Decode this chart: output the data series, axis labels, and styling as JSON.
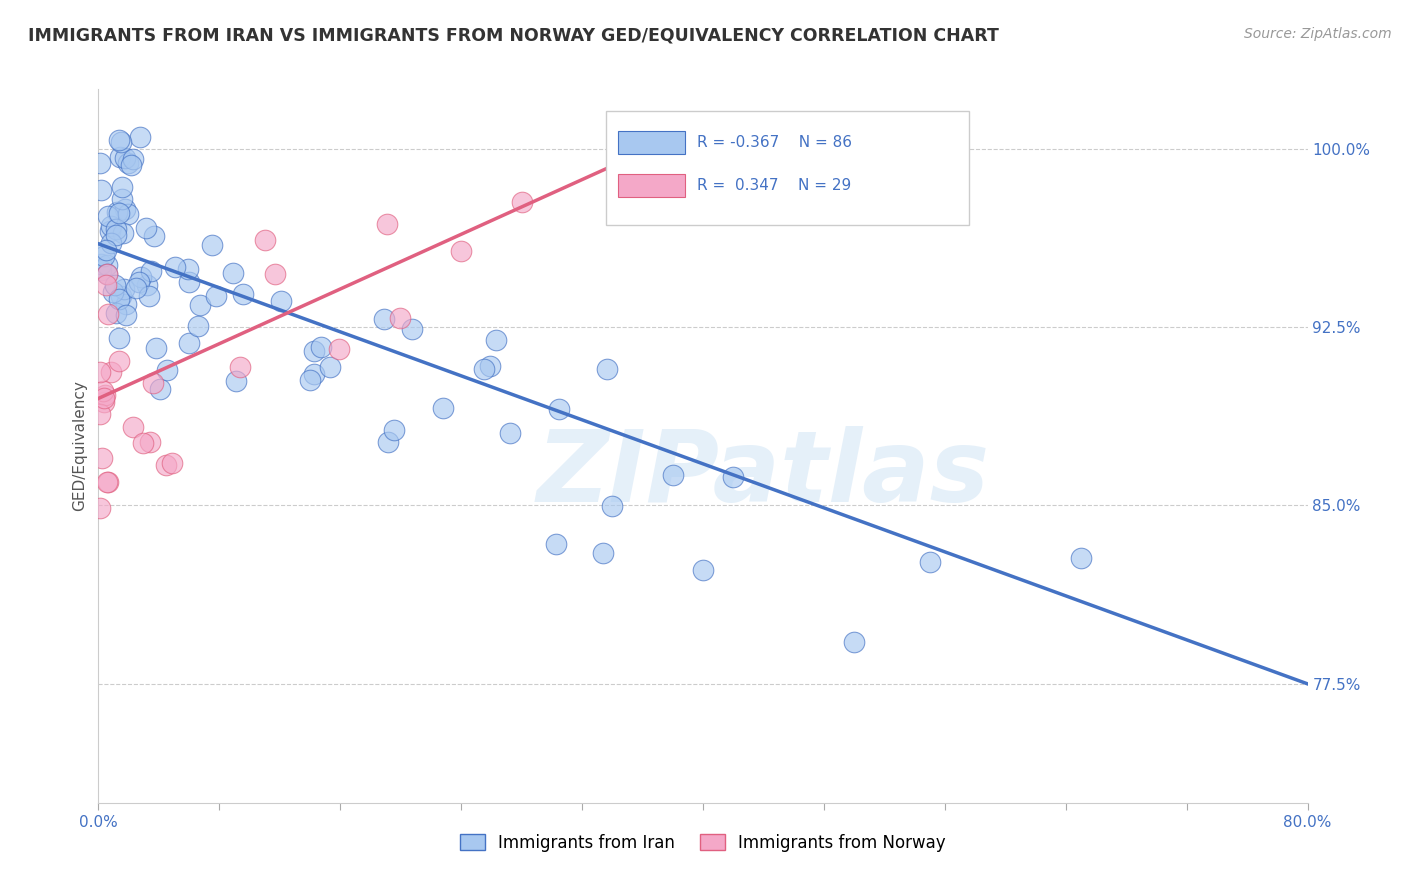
{
  "title": "IMMIGRANTS FROM IRAN VS IMMIGRANTS FROM NORWAY GED/EQUIVALENCY CORRELATION CHART",
  "source": "Source: ZipAtlas.com",
  "ylabel": "GED/Equivalency",
  "ytick_labels": [
    "100.0%",
    "92.5%",
    "85.0%",
    "77.5%"
  ],
  "ytick_values": [
    1.0,
    0.925,
    0.85,
    0.775
  ],
  "xmin": 0.0,
  "xmax": 0.8,
  "ymin": 0.725,
  "ymax": 1.025,
  "legend_iran": "Immigrants from Iran",
  "legend_norway": "Immigrants from Norway",
  "R_iran": "-0.367",
  "N_iran": "86",
  "R_norway": "0.347",
  "N_norway": "29",
  "color_iran": "#A8C8F0",
  "color_norway": "#F4A8C8",
  "color_iran_line": "#4472C4",
  "color_norway_line": "#E06080",
  "watermark": "ZIPatlas",
  "iran_line_x0": 0.0,
  "iran_line_y0": 0.96,
  "iran_line_x1": 0.8,
  "iran_line_y1": 0.775,
  "norway_line_x0": 0.0,
  "norway_line_y0": 0.895,
  "norway_line_x1": 0.4,
  "norway_line_y1": 1.01
}
